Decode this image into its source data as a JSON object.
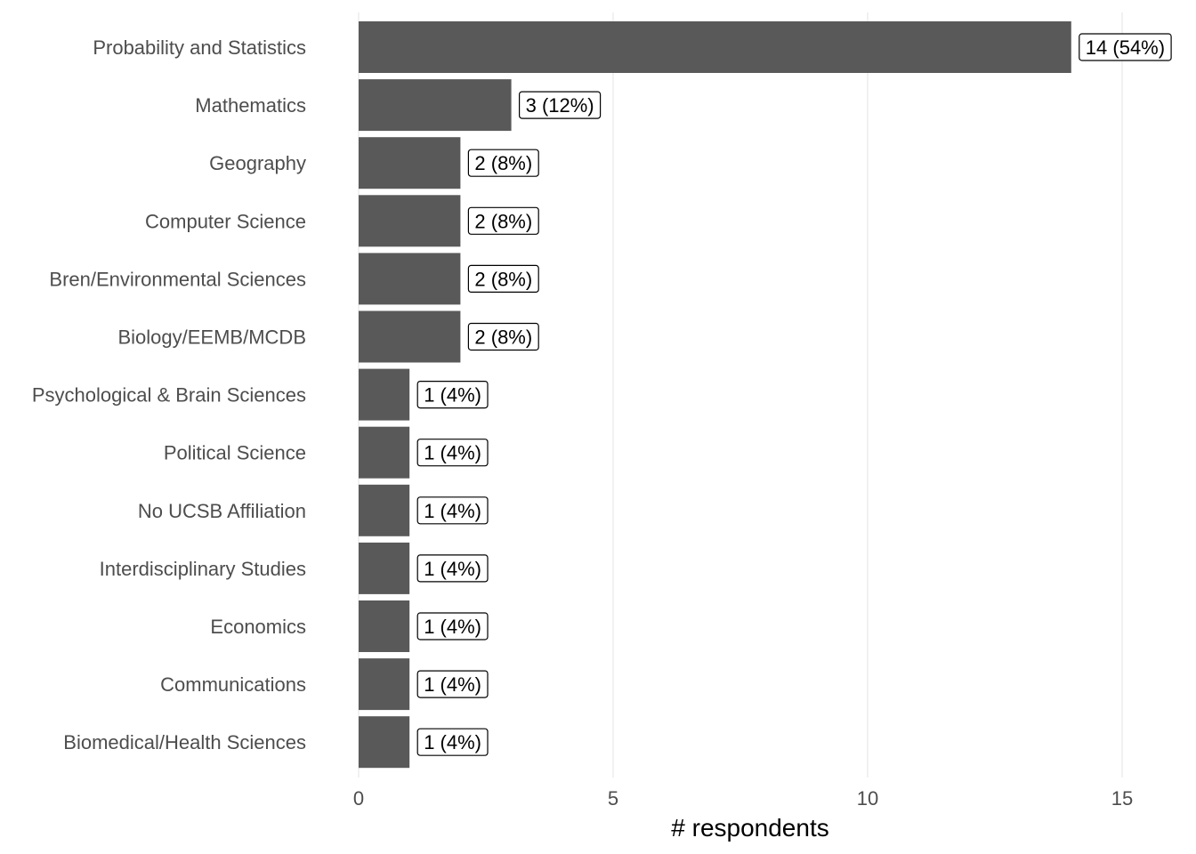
{
  "chart_data": {
    "type": "bar",
    "orientation": "horizontal",
    "categories": [
      "Probability and Statistics",
      "Mathematics",
      "Geography",
      "Computer Science",
      "Bren/Environmental Sciences",
      "Biology/EEMB/MCDB",
      "Psychological & Brain Sciences",
      "Political Science",
      "No UCSB Affiliation",
      "Interdisciplinary Studies",
      "Economics",
      "Communications",
      "Biomedical/Health Sciences"
    ],
    "values": [
      14,
      3,
      2,
      2,
      2,
      2,
      1,
      1,
      1,
      1,
      1,
      1,
      1
    ],
    "data_labels": [
      "14 (54%)",
      "3 (12%)",
      "2 (8%)",
      "2 (8%)",
      "2 (8%)",
      "2 (8%)",
      "1 (4%)",
      "1 (4%)",
      "1 (4%)",
      "1 (4%)",
      "1 (4%)",
      "1 (4%)",
      "1 (4%)"
    ],
    "title": "",
    "xlabel": "# respondents",
    "ylabel": "",
    "xlim": [
      0,
      15
    ],
    "xticks": [
      0,
      5,
      10,
      15
    ],
    "grid": true,
    "bar_color": "#595959",
    "grid_color": "#ebebeb"
  }
}
